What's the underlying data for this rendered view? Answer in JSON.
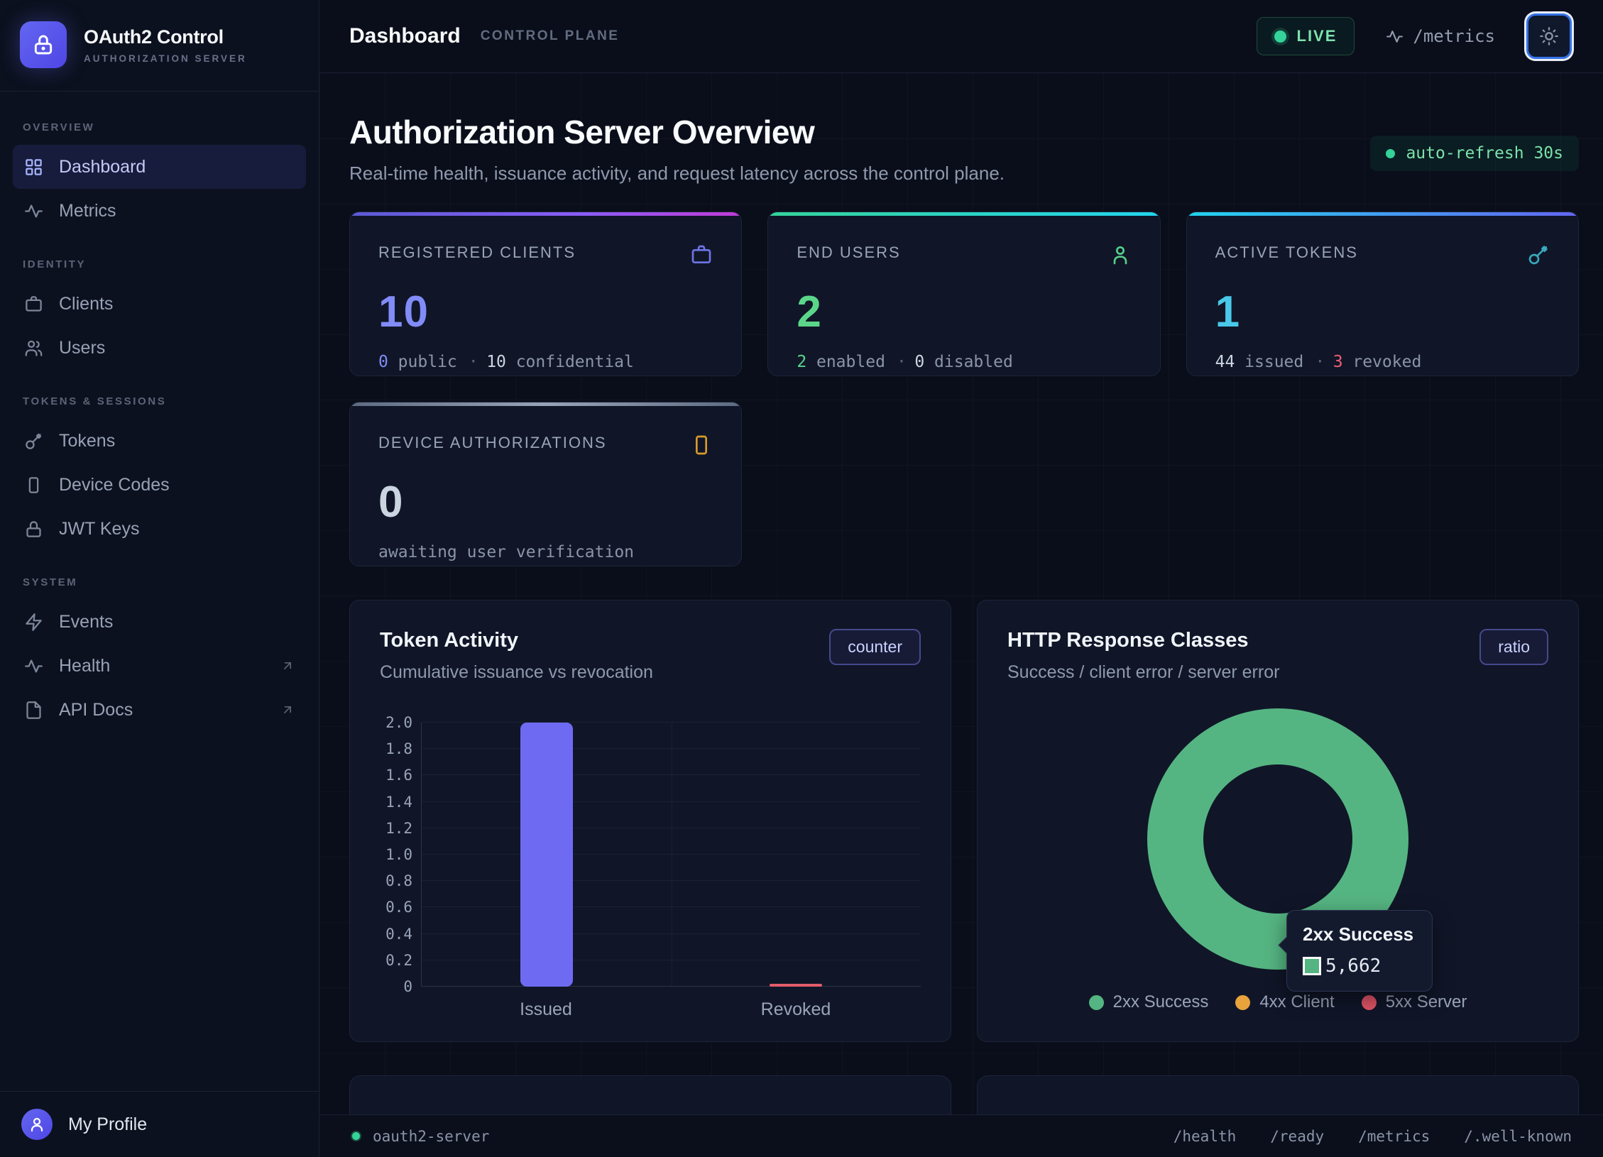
{
  "colors": {
    "accent_indigo": "#818cf8",
    "accent_green": "#5bd689",
    "accent_cyan": "#49c8ea",
    "accent_amber": "#d99a2b",
    "accent_red": "#ef5f73",
    "live_green": "#34d399",
    "bar_issued": "#6e6bf2",
    "bar_revoked": "#e35d6a",
    "donut_green": "#55b582"
  },
  "brand": {
    "title": "OAuth2 Control",
    "subtitle": "AUTHORIZATION SERVER",
    "icon": "lock-icon"
  },
  "sidebar": {
    "sections": [
      {
        "label": "OVERVIEW",
        "items": [
          {
            "label": "Dashboard",
            "icon": "grid-icon",
            "active": true
          },
          {
            "label": "Metrics",
            "icon": "activity-icon"
          }
        ]
      },
      {
        "label": "IDENTITY",
        "items": [
          {
            "label": "Clients",
            "icon": "briefcase-icon"
          },
          {
            "label": "Users",
            "icon": "users-icon"
          }
        ]
      },
      {
        "label": "TOKENS & SESSIONS",
        "items": [
          {
            "label": "Tokens",
            "icon": "key-icon"
          },
          {
            "label": "Device Codes",
            "icon": "smartphone-icon"
          },
          {
            "label": "JWT Keys",
            "icon": "lock-icon"
          }
        ]
      },
      {
        "label": "SYSTEM",
        "items": [
          {
            "label": "Events",
            "icon": "zap-icon"
          },
          {
            "label": "Health",
            "icon": "activity-icon",
            "external": true
          },
          {
            "label": "API Docs",
            "icon": "file-icon",
            "external": true
          }
        ]
      }
    ],
    "profile_label": "My Profile"
  },
  "topbar": {
    "title": "Dashboard",
    "tag": "CONTROL PLANE",
    "live_label": "LIVE",
    "metrics_label": "/metrics"
  },
  "overview": {
    "title": "Authorization Server Overview",
    "subtitle": "Real-time health, issuance activity, and request latency across the control plane.",
    "auto_refresh": "auto-refresh 30s"
  },
  "stats": [
    {
      "label": "REGISTERED CLIENTS",
      "icon": "briefcase-icon",
      "value": "10",
      "detail": [
        {
          "text": "0",
          "tone": "indigo"
        },
        {
          "text": "public",
          "tone": "muted"
        },
        {
          "text": "·",
          "tone": "dot"
        },
        {
          "text": "10",
          "tone": "bright"
        },
        {
          "text": "confidential",
          "tone": "muted"
        }
      ]
    },
    {
      "label": "END USERS",
      "icon": "user-icon",
      "value": "2",
      "detail": [
        {
          "text": "2",
          "tone": "green"
        },
        {
          "text": "enabled",
          "tone": "muted"
        },
        {
          "text": "·",
          "tone": "dot"
        },
        {
          "text": "0",
          "tone": "bright"
        },
        {
          "text": "disabled",
          "tone": "muted"
        }
      ]
    },
    {
      "label": "ACTIVE TOKENS",
      "icon": "key-icon",
      "value": "1",
      "detail": [
        {
          "text": "44",
          "tone": "bright"
        },
        {
          "text": "issued",
          "tone": "muted"
        },
        {
          "text": "·",
          "tone": "dot"
        },
        {
          "text": "3",
          "tone": "red"
        },
        {
          "text": "revoked",
          "tone": "muted"
        }
      ]
    },
    {
      "label": "DEVICE AUTHORIZATIONS",
      "icon": "smartphone-icon",
      "value": "0",
      "detail": [
        {
          "text": "awaiting user verification",
          "tone": "muted"
        }
      ]
    }
  ],
  "chart_data": [
    {
      "type": "bar",
      "title": "Token Activity",
      "subtitle": "Cumulative issuance vs revocation",
      "badge": "counter",
      "categories": [
        "Issued",
        "Revoked"
      ],
      "values": [
        2,
        0
      ],
      "bar_colors": [
        "#6e6bf2",
        "#e35d6a"
      ],
      "ylim": [
        0,
        2.0
      ],
      "ytick_step": 0.2,
      "grid": true,
      "legend_position": "none"
    },
    {
      "type": "donut",
      "title": "HTTP Response Classes",
      "subtitle": "Success / client error / server error",
      "badge": "ratio",
      "labels": [
        "2xx Success",
        "4xx Client",
        "5xx Server"
      ],
      "values": [
        5662,
        0,
        0
      ],
      "colors": [
        "#55b582",
        "#e8a33d",
        "#e05467"
      ],
      "tooltip": {
        "title": "2xx Success",
        "value": "5,662",
        "swatch_color": "#55b582"
      },
      "legend_position": "bottom"
    }
  ],
  "footer": {
    "service": "oauth2-server",
    "links": [
      "/health",
      "/ready",
      "/metrics",
      "/.well-known"
    ]
  }
}
